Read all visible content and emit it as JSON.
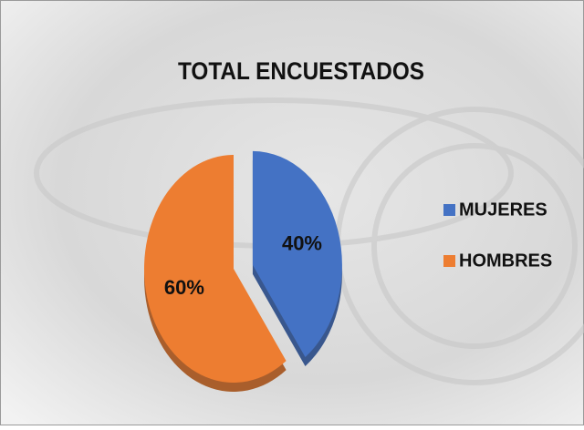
{
  "chart_data": {
    "type": "pie",
    "title": "TOTAL ENCUESTADOS",
    "categories": [
      "MUJERES",
      "HOMBRES"
    ],
    "values": [
      40,
      60
    ],
    "value_labels": [
      "40%",
      "60%"
    ],
    "colors": [
      "#4472c4",
      "#ed7d31"
    ],
    "legend": "right"
  }
}
